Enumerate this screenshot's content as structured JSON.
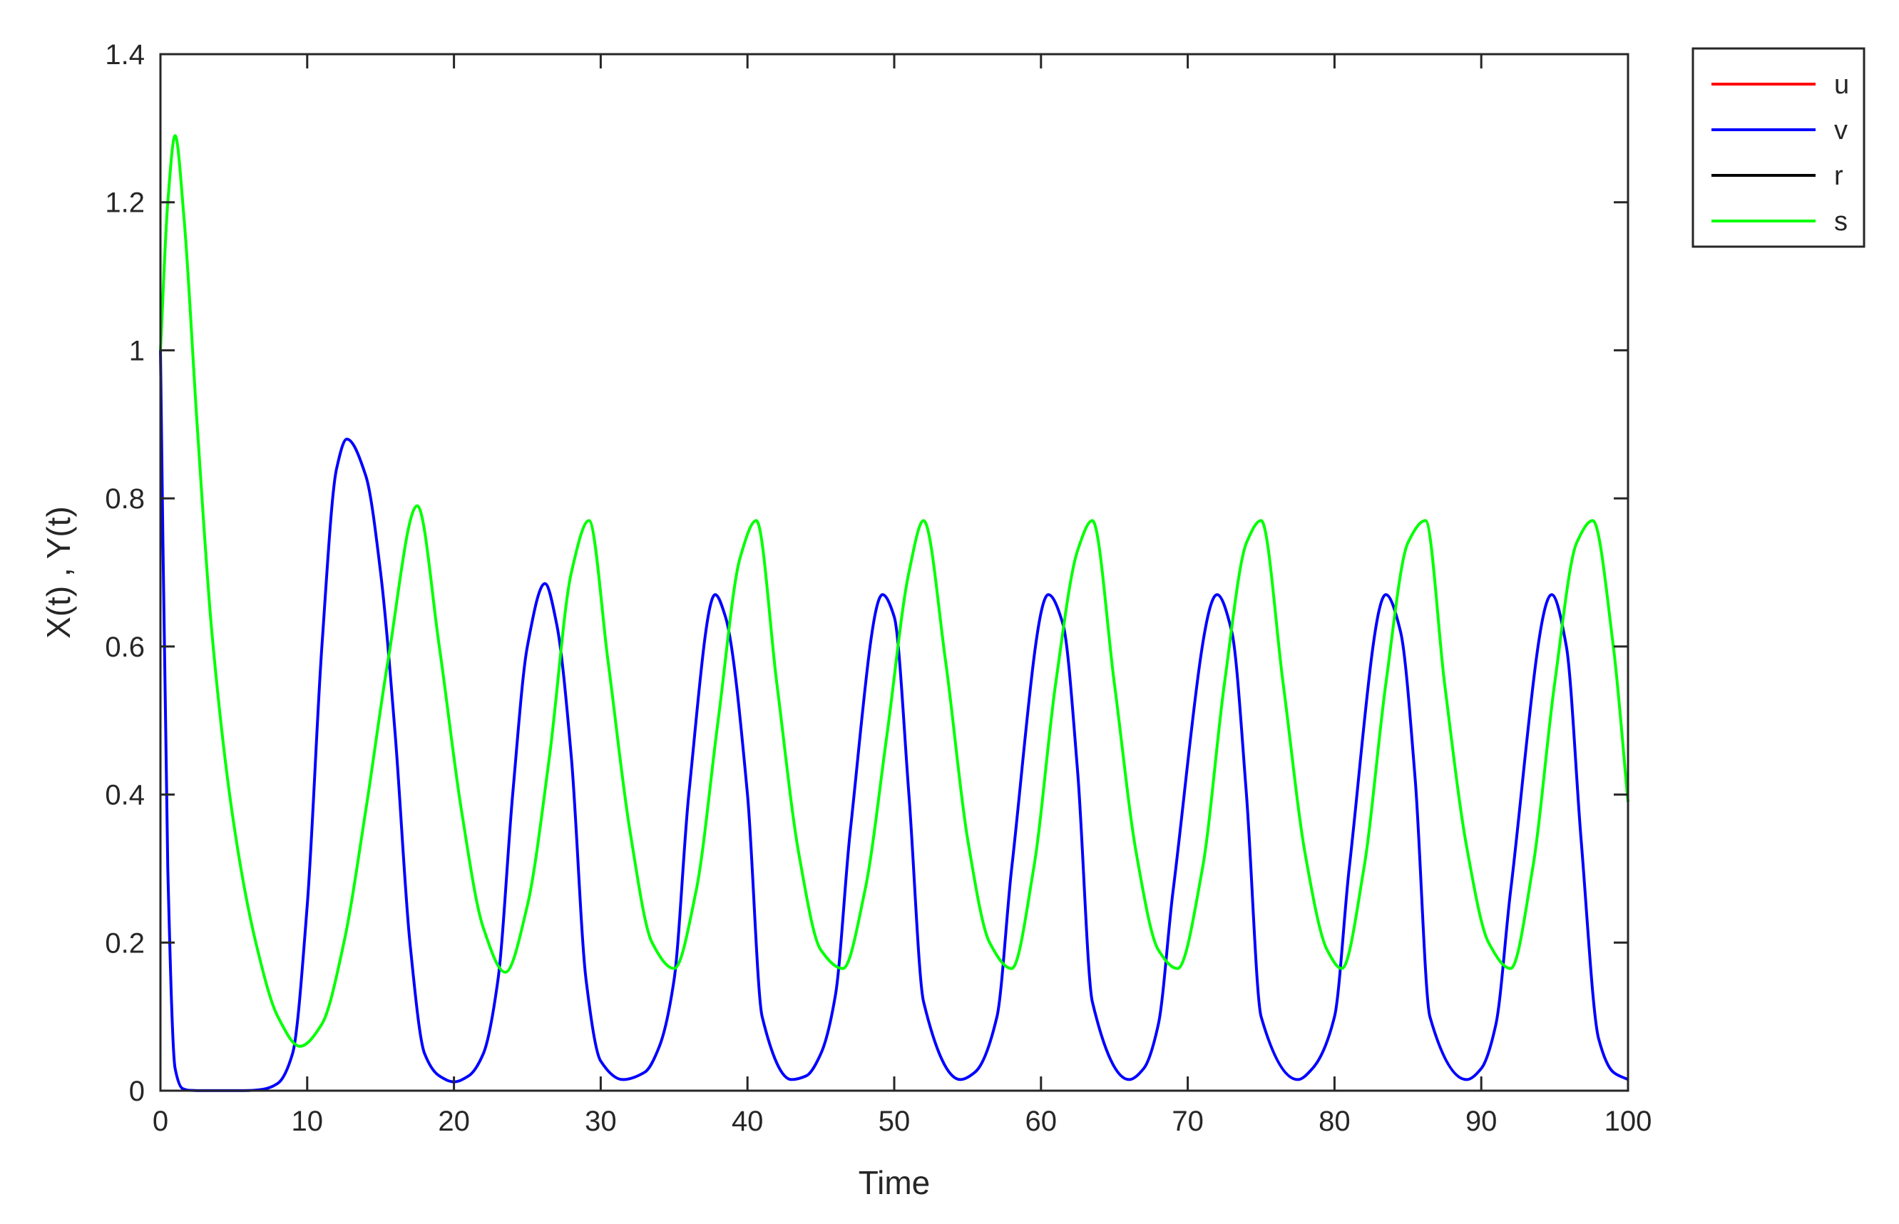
{
  "chart_data": {
    "type": "line",
    "title": "",
    "xlabel": "Time",
    "ylabel": "X(t) , Y(t)",
    "xlim": [
      0,
      100
    ],
    "ylim": [
      0,
      1.4
    ],
    "xticks": [
      0,
      10,
      20,
      30,
      40,
      50,
      60,
      70,
      80,
      90,
      100
    ],
    "yticks": [
      0,
      0.2,
      0.4,
      0.6,
      0.8,
      1,
      1.2,
      1.4
    ],
    "grid": false,
    "legend_position": "outside-top-right",
    "series": [
      {
        "name": "u",
        "color": "#ff0000",
        "x": [],
        "y": []
      },
      {
        "name": "v",
        "color": "#0000ff",
        "x": [
          0,
          0.5,
          1,
          1.5,
          2,
          3,
          4,
          5,
          6,
          7,
          8,
          9,
          10,
          11,
          12,
          12.7,
          14,
          15,
          16,
          17,
          18,
          19,
          20,
          21,
          22,
          23,
          24,
          25,
          26.2,
          27,
          28,
          29,
          30,
          31.5,
          33,
          34,
          35,
          36,
          37.8,
          38.5,
          40,
          41,
          43,
          44,
          45,
          46,
          47,
          49.2,
          50,
          51,
          52,
          54.5,
          55.5,
          57,
          58,
          60.5,
          61.5,
          62.5,
          63.5,
          66,
          67,
          68,
          69,
          72,
          73,
          74,
          75,
          77.5,
          78.5,
          80,
          81,
          83.5,
          84.5,
          85.5,
          86.5,
          89,
          90,
          91,
          92,
          94.8,
          95.8,
          96.8,
          98,
          99,
          100
        ],
        "y": [
          1.0,
          0.3,
          0.03,
          0.003,
          0.0005,
          0.0001,
          0.0001,
          0.0001,
          0.0003,
          0.002,
          0.01,
          0.05,
          0.25,
          0.6,
          0.84,
          0.88,
          0.83,
          0.7,
          0.48,
          0.2,
          0.05,
          0.02,
          0.012,
          0.02,
          0.05,
          0.15,
          0.4,
          0.6,
          0.685,
          0.63,
          0.45,
          0.15,
          0.04,
          0.015,
          0.025,
          0.06,
          0.15,
          0.4,
          0.67,
          0.64,
          0.4,
          0.1,
          0.015,
          0.02,
          0.05,
          0.13,
          0.35,
          0.67,
          0.64,
          0.4,
          0.12,
          0.015,
          0.025,
          0.1,
          0.3,
          0.67,
          0.63,
          0.43,
          0.12,
          0.015,
          0.03,
          0.09,
          0.27,
          0.67,
          0.62,
          0.4,
          0.1,
          0.015,
          0.03,
          0.1,
          0.3,
          0.67,
          0.62,
          0.42,
          0.1,
          0.015,
          0.03,
          0.09,
          0.27,
          0.67,
          0.6,
          0.34,
          0.07,
          0.025,
          0.015
        ]
      },
      {
        "name": "r",
        "color": "#000000",
        "x": [],
        "y": []
      },
      {
        "name": "s",
        "color": "#00ff00",
        "x": [
          0,
          0.5,
          1,
          1.6,
          2.5,
          3.5,
          5,
          6.5,
          8,
          9.5,
          11,
          12.5,
          14,
          15.5,
          17.5,
          19,
          20.5,
          22,
          23.5,
          25,
          26.5,
          28,
          29.2,
          30.5,
          32,
          33.5,
          35,
          36.5,
          38,
          39.5,
          40.6,
          42,
          43.5,
          45,
          46.5,
          48,
          49.5,
          51,
          52,
          53.5,
          55,
          56.5,
          58,
          59.5,
          61,
          62.5,
          63.5,
          65,
          66.5,
          68,
          69.3,
          71,
          72.5,
          74,
          75,
          76.5,
          78,
          79.5,
          80.5,
          82,
          83.5,
          85,
          86.2,
          87.5,
          89,
          90.5,
          92,
          93.5,
          95,
          96.5,
          97.6,
          99,
          100
        ],
        "y": [
          1.0,
          1.2,
          1.29,
          1.18,
          0.9,
          0.62,
          0.36,
          0.2,
          0.1,
          0.06,
          0.09,
          0.2,
          0.38,
          0.58,
          0.79,
          0.6,
          0.38,
          0.22,
          0.16,
          0.25,
          0.45,
          0.7,
          0.77,
          0.58,
          0.35,
          0.2,
          0.165,
          0.27,
          0.5,
          0.72,
          0.77,
          0.55,
          0.32,
          0.19,
          0.165,
          0.27,
          0.48,
          0.7,
          0.77,
          0.58,
          0.34,
          0.2,
          0.165,
          0.3,
          0.55,
          0.73,
          0.77,
          0.55,
          0.32,
          0.19,
          0.165,
          0.3,
          0.55,
          0.74,
          0.77,
          0.55,
          0.32,
          0.19,
          0.165,
          0.3,
          0.55,
          0.74,
          0.77,
          0.55,
          0.33,
          0.2,
          0.165,
          0.3,
          0.55,
          0.74,
          0.77,
          0.6,
          0.39
        ]
      }
    ]
  }
}
